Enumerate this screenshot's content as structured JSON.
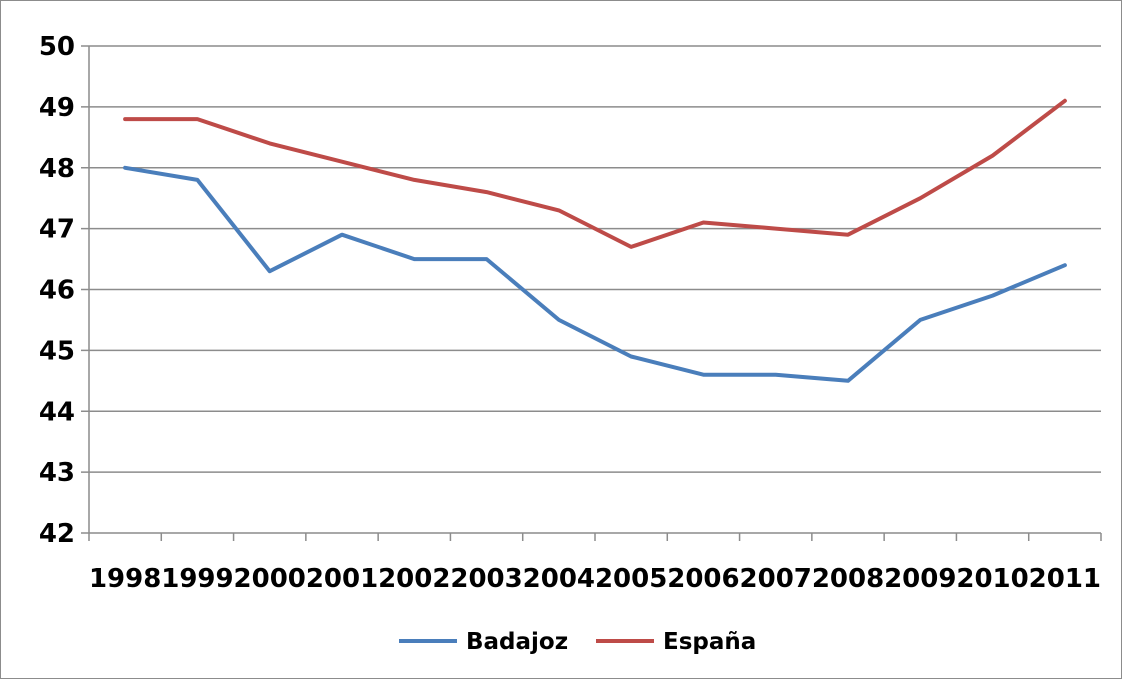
{
  "chart_data": {
    "type": "line",
    "x": [
      "1998",
      "1999",
      "2000",
      "2001",
      "2002",
      "2003",
      "2004",
      "2005",
      "2006",
      "2007",
      "2008",
      "2009",
      "2010",
      "2011"
    ],
    "series": [
      {
        "name": "Badajoz",
        "color": "#4a7ebb",
        "values": [
          48.0,
          47.8,
          46.3,
          46.9,
          46.5,
          46.5,
          45.5,
          44.9,
          44.6,
          44.6,
          44.5,
          45.5,
          45.9,
          46.4
        ]
      },
      {
        "name": "España",
        "color": "#be4b48",
        "values": [
          48.8,
          48.8,
          48.4,
          48.1,
          47.8,
          47.6,
          47.3,
          46.7,
          47.1,
          47.0,
          46.9,
          47.5,
          48.2,
          49.1
        ]
      }
    ],
    "ylim": [
      42,
      50
    ],
    "yticks": [
      "42",
      "43",
      "44",
      "45",
      "46",
      "47",
      "48",
      "49",
      "50"
    ],
    "grid": true,
    "legend": "bottom"
  }
}
